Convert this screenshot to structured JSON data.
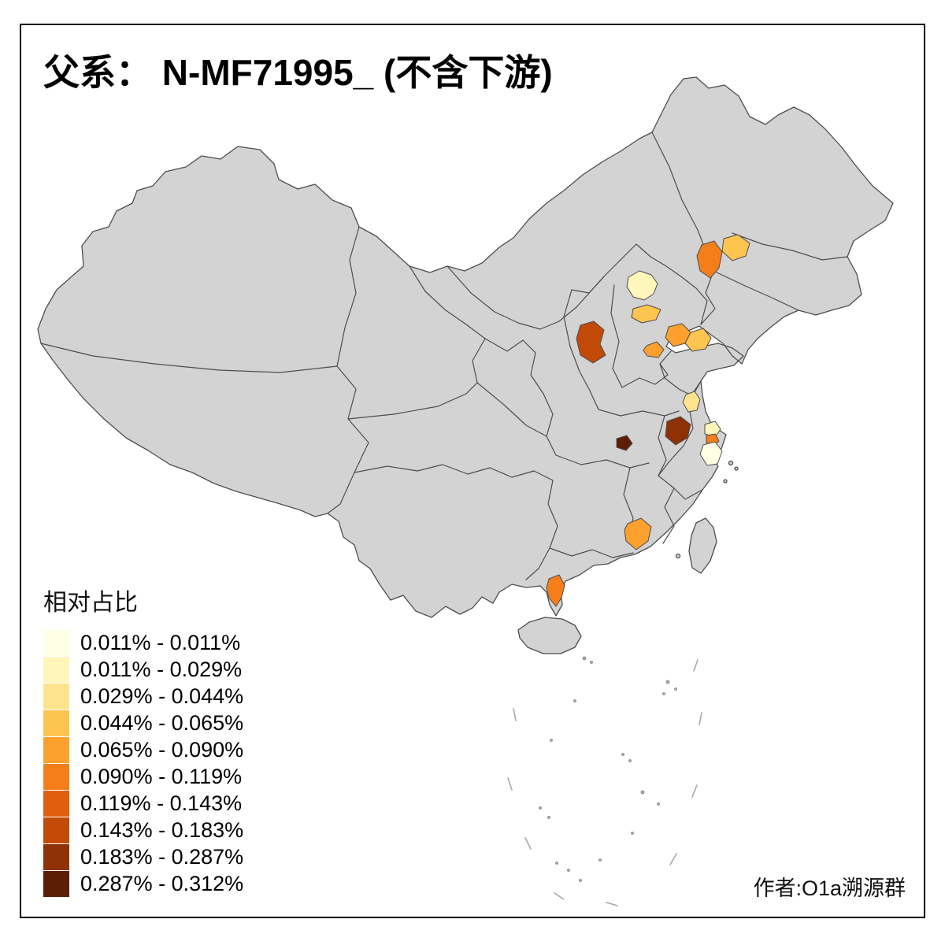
{
  "title": "父系： N-MF71995_ (不含下游)",
  "author": "作者:O1a溯源群",
  "legend": {
    "title": "相对占比",
    "bins": [
      {
        "label": "0.011% - 0.011%",
        "color": "#FFFFE5"
      },
      {
        "label": "0.011% - 0.029%",
        "color": "#FFF6BC"
      },
      {
        "label": "0.029% - 0.044%",
        "color": "#FEE38F"
      },
      {
        "label": "0.044% - 0.065%",
        "color": "#FEC450"
      },
      {
        "label": "0.065% - 0.090%",
        "color": "#FDA02E"
      },
      {
        "label": "0.090% - 0.119%",
        "color": "#F57E1B"
      },
      {
        "label": "0.119% - 0.143%",
        "color": "#E05F0E"
      },
      {
        "label": "0.143% - 0.183%",
        "color": "#C24906"
      },
      {
        "label": "0.183% - 0.287%",
        "color": "#8E3104"
      },
      {
        "label": "0.287% - 0.312%",
        "color": "#5C1E05"
      }
    ]
  },
  "map": {
    "base_fill": "#D3D3D3",
    "border_color": "#4D4D4D",
    "sea_mark_color": "#A8A8A8",
    "background": "#FFFFFF",
    "regions": {
      "west-liaoning": 6,
      "north-liaoning": 4,
      "beijing": 2,
      "hebei-tianjin": 4,
      "central-shanxi": 8,
      "west-shandong": 5,
      "central-shandong": 4,
      "north-henan": 5,
      "central-jiangsu": 3,
      "nanjing-area": 9,
      "east-hubei": 10,
      "shanghai-north": 2,
      "shanghai-city": 6,
      "north-zhejiang": 1,
      "east-guangdong": 5,
      "zhanjiang": 6
    }
  }
}
